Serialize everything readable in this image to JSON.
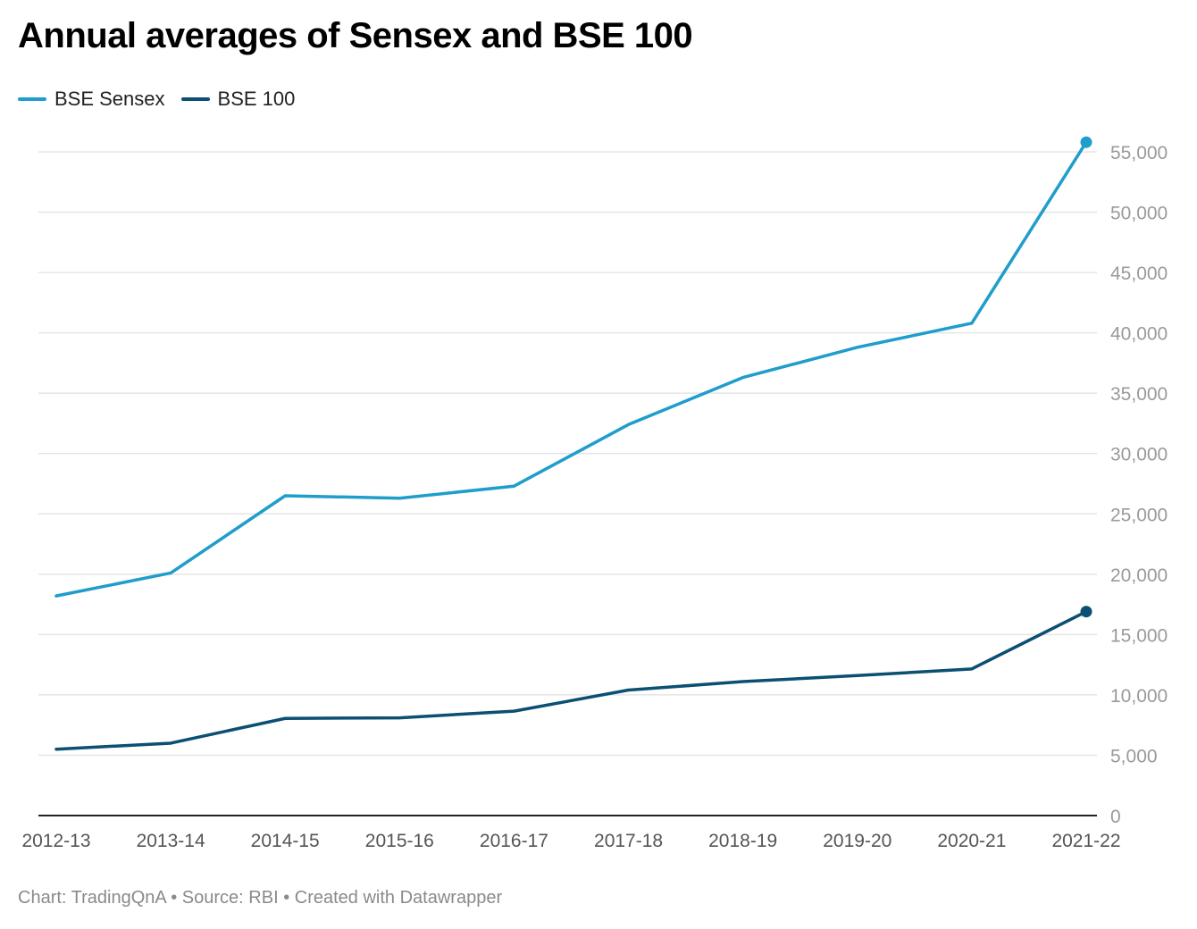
{
  "title": "Annual averages of Sensex and BSE 100",
  "footer": {
    "chart_label": "Chart: TradingQnA",
    "separator": "•",
    "source": "Source: RBI",
    "credit": "Created with Datawrapper"
  },
  "colors": {
    "sensex": "#1f9dcb",
    "bse100": "#0b4f73",
    "grid": "#e5e5e5",
    "axis": "#222222",
    "tick_text": "#9a9a9a"
  },
  "chart_data": {
    "type": "line",
    "title": "Annual averages of Sensex and BSE 100",
    "xlabel": "",
    "ylabel": "",
    "x": [
      "2012-13",
      "2013-14",
      "2014-15",
      "2015-16",
      "2016-17",
      "2017-18",
      "2018-19",
      "2019-20",
      "2020-21",
      "2021-22"
    ],
    "ylim": [
      0,
      55000
    ],
    "yticks": [
      0,
      5000,
      10000,
      15000,
      20000,
      25000,
      30000,
      35000,
      40000,
      45000,
      50000,
      55000
    ],
    "ytick_labels": [
      "0",
      "5,000",
      "10,000",
      "15,000",
      "20,000",
      "25,000",
      "30,000",
      "35,000",
      "40,000",
      "45,000",
      "50,000",
      "55,000"
    ],
    "y_axis_position": "right",
    "grid": true,
    "legend_position": "top-left",
    "series": [
      {
        "name": "BSE Sensex",
        "color": "#1f9dcb",
        "values": [
          18200,
          20100,
          26500,
          26300,
          27300,
          32400,
          36300,
          38800,
          40800,
          55800
        ]
      },
      {
        "name": "BSE 100",
        "color": "#0b4f73",
        "values": [
          5500,
          6000,
          8050,
          8100,
          8650,
          10400,
          11100,
          11600,
          12150,
          16900
        ]
      }
    ]
  }
}
